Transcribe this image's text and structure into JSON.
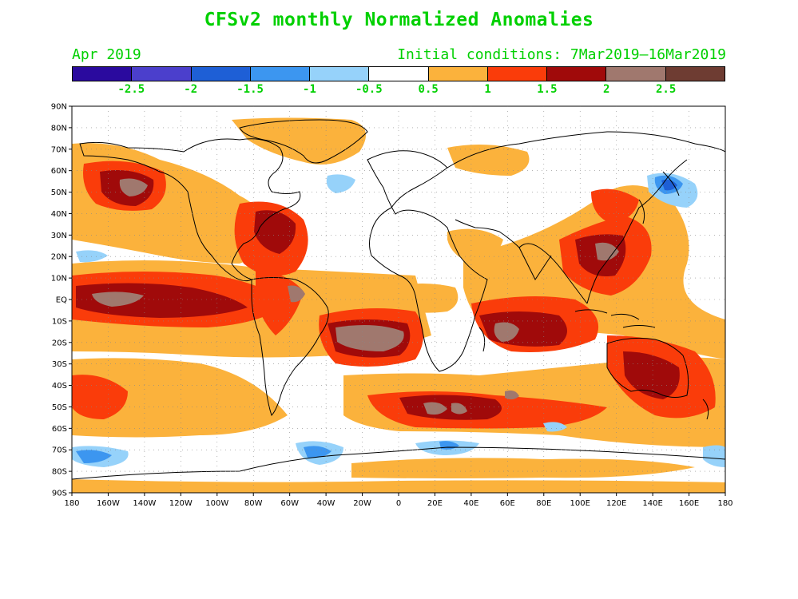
{
  "title": "CFSv2 monthly Normalized Anomalies",
  "month": "Apr 2019",
  "initial_conditions": "Initial conditions: 7Mar2019—16Mar2019",
  "colorbar": {
    "colors": [
      "#2a0a9e",
      "#4b3fcc",
      "#1e5fd6",
      "#3c96f0",
      "#96d2fa",
      "#ffffff",
      "#fbb23c",
      "#fa3c0a",
      "#a00a0a",
      "#a0786e",
      "#6e3c32"
    ],
    "labels": [
      "-2.5",
      "-2",
      "-1.5",
      "-1",
      "-0.5",
      "0.5",
      "1",
      "1.5",
      "2",
      "2.5"
    ]
  },
  "axes": {
    "lat_labels": [
      "90N",
      "80N",
      "70N",
      "60N",
      "50N",
      "40N",
      "30N",
      "20N",
      "10N",
      "EQ",
      "10S",
      "20S",
      "30S",
      "40S",
      "50S",
      "60S",
      "70S",
      "80S",
      "90S"
    ],
    "lon_labels": [
      "180",
      "160W",
      "140W",
      "120W",
      "100W",
      "80W",
      "60W",
      "40W",
      "20W",
      "0",
      "20E",
      "40E",
      "60E",
      "80E",
      "100E",
      "120E",
      "140E",
      "160E",
      "180"
    ]
  }
}
